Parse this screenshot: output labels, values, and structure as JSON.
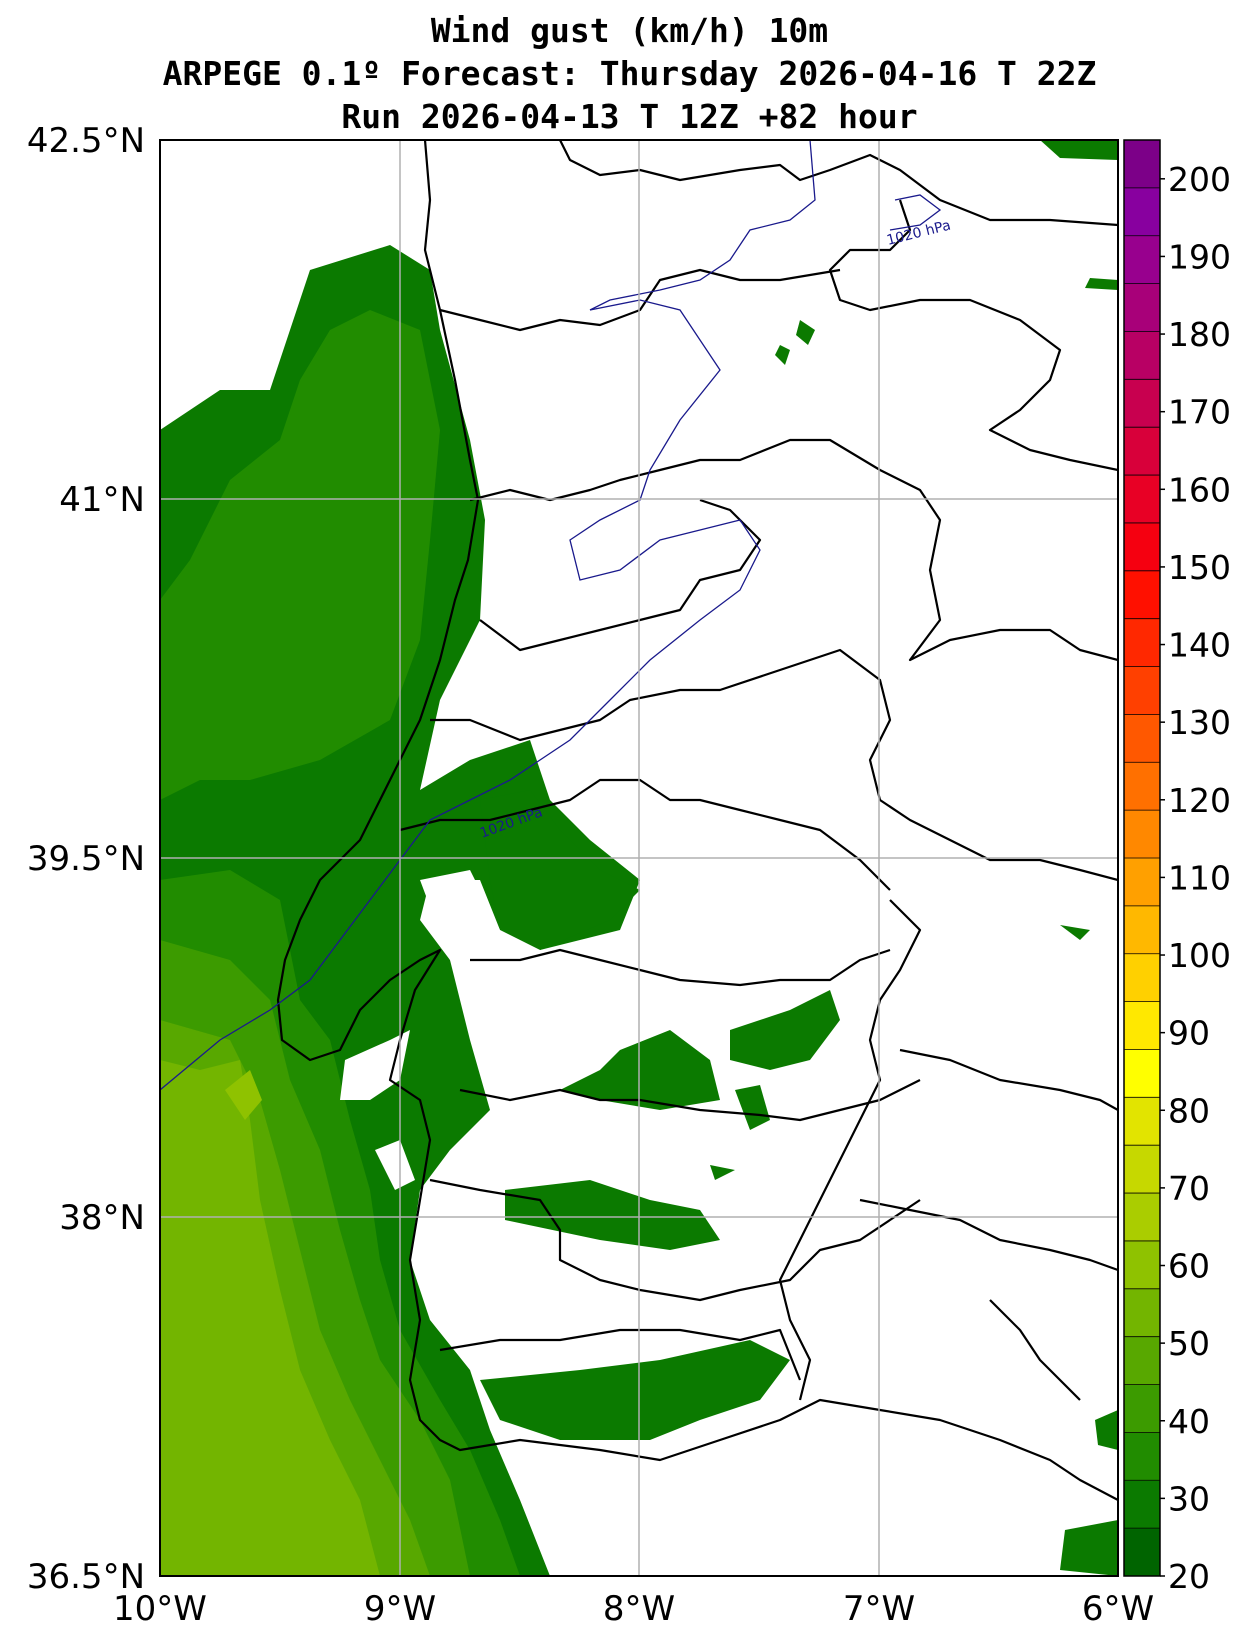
{
  "title": {
    "line1": "Wind gust (km/h) 10m",
    "line2": "ARPEGE 0.1º Forecast: Thursday 2026-04-16 T 22Z",
    "line3": "Run 2026-04-13 T 12Z +82 hour"
  },
  "axes": {
    "lat_labels": [
      "42.5°N",
      "41°N",
      "39.5°N",
      "38°N",
      "36.5°N"
    ],
    "lon_labels": [
      "10°W",
      "9°W",
      "8°W",
      "7°W",
      "6°W"
    ]
  },
  "colorbar": {
    "min": 20,
    "max": 205,
    "tick_labels": [
      "20",
      "30",
      "40",
      "50",
      "60",
      "70",
      "80",
      "90",
      "100",
      "110",
      "120",
      "130",
      "140",
      "150",
      "160",
      "170",
      "180",
      "190",
      "200"
    ],
    "colors": [
      "#006400",
      "#0b7a00",
      "#218c00",
      "#3c9b00",
      "#58a800",
      "#73b500",
      "#8fc200",
      "#aacd00",
      "#c6d800",
      "#e2e400",
      "#ffff00",
      "#ffe800",
      "#ffd000",
      "#ffb800",
      "#ffa000",
      "#ff8800",
      "#ff7000",
      "#ff5800",
      "#ff4000",
      "#ff2800",
      "#ff1000",
      "#f50010",
      "#e80025",
      "#d8003a",
      "#c8004f",
      "#b80064",
      "#a80079",
      "#98008e",
      "#88009f",
      "#7c0088"
    ]
  },
  "isobar_labels": [
    "1020 hPa",
    "1020 hPa"
  ]
}
